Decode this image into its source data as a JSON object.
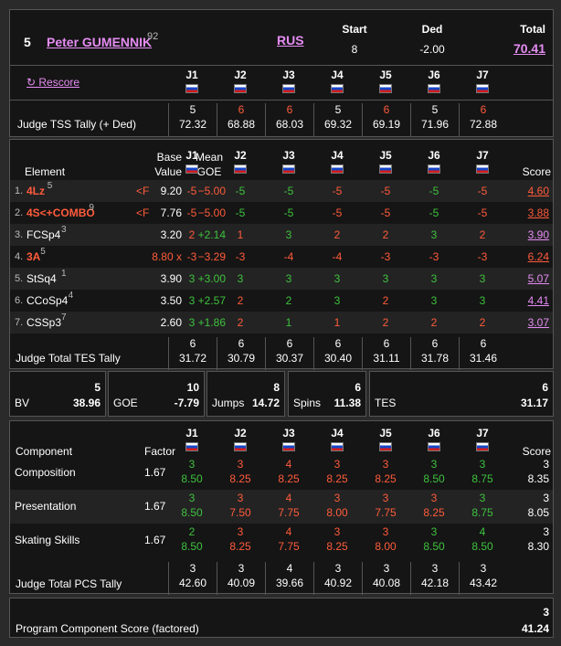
{
  "skater": {
    "rank": "5",
    "name": "Peter GUMENNIK",
    "name_sup": "92",
    "nation": "RUS",
    "start_label": "Start",
    "start": "8",
    "ded_label": "Ded",
    "ded": "-2.00",
    "total_label": "Total",
    "total": "70.41"
  },
  "rescore_label": "↻ Rescore",
  "judges": [
    "J1",
    "J2",
    "J3",
    "J4",
    "J5",
    "J6",
    "J7"
  ],
  "tss": {
    "label": "Judge TSS Tally (+ Ded)",
    "ranks": [
      "5",
      "6",
      "6",
      "5",
      "6",
      "5",
      "6"
    ],
    "values": [
      "72.32",
      "68.88",
      "68.03",
      "69.32",
      "69.19",
      "71.96",
      "72.88"
    ]
  },
  "elements_header": {
    "element": "Element",
    "base1": "Base",
    "base2": "Value",
    "goe1": "Mean",
    "goe2": "GOE",
    "score": "Score"
  },
  "elements": [
    {
      "num": "1.",
      "name": "4Lz",
      "sup": "5",
      "flag": "<F",
      "base": "9.20",
      "goe": "−5.00",
      "goe_pos": false,
      "j": [
        "-5",
        "-5",
        "-5",
        "-5",
        "-5",
        "-5",
        "-5"
      ],
      "score": "4.60"
    },
    {
      "num": "2.",
      "name": "4S<+COMBO",
      "sup": "9",
      "flag": "<F",
      "base": "7.76",
      "goe": "−5.00",
      "goe_pos": false,
      "j": [
        "-5",
        "-5",
        "-5",
        "-5",
        "-5",
        "-5",
        "-5"
      ],
      "score": "3.88"
    },
    {
      "num": "3.",
      "name": "FCSp4",
      "sup": "3",
      "flag": "",
      "base": "3.20",
      "goe": "+2.14",
      "goe_pos": true,
      "j": [
        "2",
        "1",
        "3",
        "2",
        "2",
        "3",
        "2"
      ],
      "score": "3.90"
    },
    {
      "num": "4.",
      "name": "3A",
      "sup": "5",
      "flag": "",
      "base": "8.80 x",
      "goe": "−3.29",
      "goe_pos": false,
      "j": [
        "-3",
        "-3",
        "-4",
        "-4",
        "-3",
        "-3",
        "-3"
      ],
      "score": "6.24"
    },
    {
      "num": "5.",
      "name": "StSq4",
      "sup": "1",
      "flag": "",
      "base": "3.90",
      "goe": "+3.00",
      "goe_pos": true,
      "j": [
        "3",
        "3",
        "3",
        "3",
        "3",
        "3",
        "3"
      ],
      "score": "5.07"
    },
    {
      "num": "6.",
      "name": "CCoSp4",
      "sup": "4",
      "flag": "",
      "base": "3.50",
      "goe": "+2.57",
      "goe_pos": true,
      "j": [
        "3",
        "2",
        "2",
        "3",
        "2",
        "3",
        "3"
      ],
      "score": "4.41"
    },
    {
      "num": "7.",
      "name": "CSSp3",
      "sup": "7",
      "flag": "",
      "base": "2.60",
      "goe": "+1.86",
      "goe_pos": true,
      "j": [
        "3",
        "2",
        "1",
        "1",
        "2",
        "2",
        "2"
      ],
      "score": "3.07"
    }
  ],
  "tes_tally": {
    "label": "Judge Total TES Tally",
    "ranks": [
      "6",
      "6",
      "6",
      "6",
      "6",
      "6",
      "6"
    ],
    "values": [
      "31.72",
      "30.79",
      "30.37",
      "30.40",
      "31.11",
      "31.78",
      "31.46"
    ]
  },
  "summary": [
    {
      "label": "BV",
      "rank": "5",
      "value": "38.96"
    },
    {
      "label": "GOE",
      "rank": "10",
      "value": "-7.79"
    },
    {
      "label": "Jumps",
      "rank": "8",
      "value": "14.72"
    },
    {
      "label": "Spins",
      "rank": "6",
      "value": "11.38"
    },
    {
      "label": "TES",
      "rank": "6",
      "value": "31.17"
    }
  ],
  "pcs_header": {
    "component": "Component",
    "factor": "Factor",
    "score": "Score"
  },
  "components": [
    {
      "name": "Composition",
      "factor": "1.67",
      "ranks": [
        "3",
        "3",
        "4",
        "3",
        "3",
        "3",
        "3"
      ],
      "marks": [
        "8.50",
        "8.25",
        "8.25",
        "8.25",
        "8.25",
        "8.50",
        "8.75"
      ],
      "score_rank": "3",
      "score": "8.35"
    },
    {
      "name": "Presentation",
      "factor": "1.67",
      "ranks": [
        "3",
        "3",
        "4",
        "3",
        "3",
        "3",
        "3"
      ],
      "marks": [
        "8.50",
        "7.50",
        "7.75",
        "8.00",
        "7.75",
        "8.25",
        "8.75"
      ],
      "score_rank": "3",
      "score": "8.05"
    },
    {
      "name": "Skating Skills",
      "factor": "1.67",
      "ranks": [
        "2",
        "3",
        "4",
        "3",
        "3",
        "3",
        "4"
      ],
      "marks": [
        "8.50",
        "8.25",
        "7.75",
        "8.25",
        "8.00",
        "8.50",
        "8.50"
      ],
      "score_rank": "3",
      "score": "8.30"
    }
  ],
  "pcs_tally": {
    "label": "Judge Total PCS Tally",
    "ranks": [
      "3",
      "3",
      "4",
      "3",
      "3",
      "3",
      "3"
    ],
    "values": [
      "42.60",
      "40.09",
      "39.66",
      "40.92",
      "40.08",
      "42.18",
      "43.42"
    ]
  },
  "pcs_factored": {
    "label": "Program Component Score (factored)",
    "rank": "3",
    "value": "41.24"
  },
  "colors": {
    "bg": "#151515",
    "red": "#ff5b3b",
    "green": "#3ec23e",
    "link": "#e58cf2"
  }
}
